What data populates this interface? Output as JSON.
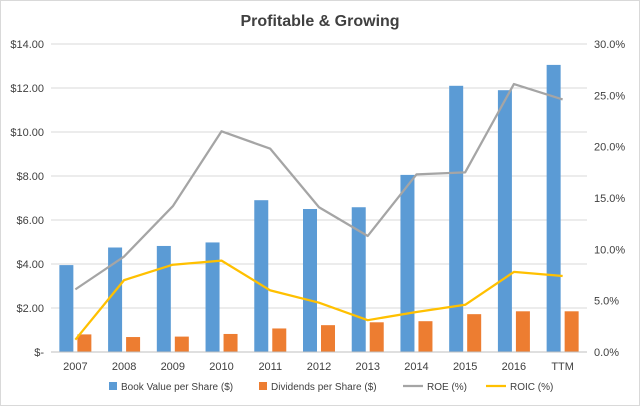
{
  "chart_data": {
    "type": "bar",
    "title": "Profitable & Growing",
    "categories": [
      "2007",
      "2008",
      "2009",
      "2010",
      "2011",
      "2012",
      "2013",
      "2014",
      "2015",
      "2016",
      "TTM"
    ],
    "left_axis": {
      "ylim": [
        0,
        14
      ],
      "ticks": [
        0,
        2,
        4,
        6,
        8,
        10,
        12,
        14
      ],
      "tick_labels": [
        "$-",
        "$2.00",
        "$4.00",
        "$6.00",
        "$8.00",
        "$10.00",
        "$12.00",
        "$14.00"
      ]
    },
    "right_axis": {
      "ylim": [
        0,
        30
      ],
      "ticks": [
        0,
        5,
        10,
        15,
        20,
        25,
        30
      ],
      "tick_labels": [
        "0.0%",
        "5.0%",
        "10.0%",
        "15.0%",
        "20.0%",
        "25.0%",
        "30.0%"
      ]
    },
    "series": [
      {
        "name": "Book Value per Share ($)",
        "kind": "bar",
        "axis": "left",
        "color": "#5b9bd5",
        "values": [
          3.95,
          4.75,
          4.82,
          4.98,
          6.9,
          6.5,
          6.58,
          8.05,
          12.1,
          11.9,
          13.05
        ]
      },
      {
        "name": "Dividends per Share ($)",
        "kind": "bar",
        "axis": "left",
        "color": "#ed7d31",
        "values": [
          0.8,
          0.68,
          0.7,
          0.82,
          1.07,
          1.22,
          1.35,
          1.4,
          1.72,
          1.85,
          1.85
        ]
      },
      {
        "name": "ROE (%)",
        "kind": "line",
        "axis": "right",
        "color": "#a5a5a5",
        "values": [
          6.1,
          9.3,
          14.2,
          21.5,
          19.8,
          14.1,
          11.3,
          17.3,
          17.5,
          26.1,
          24.6
        ]
      },
      {
        "name": "ROIC (%)",
        "kind": "line",
        "axis": "right",
        "color": "#ffc000",
        "values": [
          1.2,
          7.0,
          8.5,
          8.9,
          6.0,
          4.8,
          3.1,
          3.9,
          4.6,
          7.8,
          7.4
        ]
      }
    ],
    "grid": true,
    "legend_position": "bottom"
  }
}
